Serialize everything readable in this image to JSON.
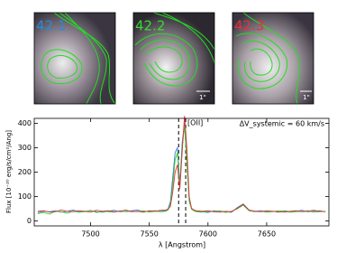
{
  "panels": [
    {
      "label": "42.1",
      "color": "#2a8ad8"
    },
    {
      "label": "42.2",
      "color": "#33dd33"
    },
    {
      "label": "42.3",
      "color": "#e8303a"
    }
  ],
  "scale_bar": "1\"",
  "chart_data": {
    "type": "line",
    "xlabel": "λ [Angstrom]",
    "ylabel": "Flux [10⁻²⁰ erg/s/cm²/Ang]",
    "annotation": "ΔV_systemic = 60 km/s",
    "line_label": "[OII]",
    "vlines": [
      7575,
      7581
    ],
    "x": [
      7455,
      7460,
      7465,
      7470,
      7475,
      7480,
      7485,
      7490,
      7495,
      7500,
      7505,
      7510,
      7515,
      7520,
      7525,
      7530,
      7535,
      7540,
      7545,
      7550,
      7555,
      7560,
      7564,
      7566,
      7568,
      7570,
      7572,
      7574,
      7576,
      7578,
      7580,
      7582,
      7584,
      7586,
      7588,
      7590,
      7595,
      7600,
      7605,
      7610,
      7615,
      7620,
      7625,
      7630,
      7635,
      7640,
      7645,
      7650,
      7655,
      7660,
      7665,
      7670,
      7675,
      7680,
      7685,
      7690,
      7695,
      7700
    ],
    "series": [
      {
        "name": "42.1",
        "color": "#3a7bd5",
        "values": [
          35,
          40,
          38,
          42,
          36,
          40,
          45,
          38,
          40,
          42,
          38,
          36,
          40,
          44,
          38,
          40,
          42,
          45,
          38,
          40,
          42,
          40,
          42,
          50,
          80,
          180,
          280,
          300,
          150,
          320,
          400,
          250,
          90,
          50,
          45,
          40,
          38,
          35,
          42,
          40,
          38,
          36,
          55,
          70,
          45,
          40,
          42,
          38,
          40,
          36,
          42,
          38,
          40,
          44,
          38,
          40,
          42,
          38
        ]
      },
      {
        "name": "42.2",
        "color": "#33cc33",
        "values": [
          30,
          35,
          28,
          40,
          38,
          32,
          40,
          36,
          38,
          44,
          35,
          40,
          38,
          36,
          42,
          38,
          40,
          38,
          42,
          36,
          40,
          38,
          40,
          45,
          70,
          150,
          250,
          280,
          140,
          300,
          390,
          240,
          80,
          48,
          42,
          38,
          36,
          40,
          38,
          42,
          35,
          40,
          50,
          65,
          42,
          38,
          40,
          36,
          38,
          42,
          40,
          36,
          38,
          40,
          42,
          36,
          38,
          40
        ]
      },
      {
        "name": "42.3",
        "color": "#dd3333",
        "values": [
          40,
          42,
          36,
          38,
          45,
          40,
          38,
          42,
          40,
          36,
          44,
          40,
          42,
          38,
          40,
          45,
          38,
          40,
          36,
          42,
          40,
          44,
          45,
          48,
          60,
          120,
          200,
          230,
          130,
          280,
          430,
          300,
          100,
          52,
          45,
          42,
          40,
          42,
          38,
          36,
          40,
          38,
          52,
          68,
          44,
          40,
          38,
          42,
          40,
          38,
          36,
          40,
          42,
          38,
          40,
          44,
          40,
          38
        ]
      }
    ],
    "xlim": [
      7452,
      7703
    ],
    "ylim": [
      -20,
      420
    ],
    "xticks": [
      7500,
      7550,
      7600,
      7650
    ],
    "yticks": [
      0,
      100,
      200,
      300,
      400
    ]
  }
}
